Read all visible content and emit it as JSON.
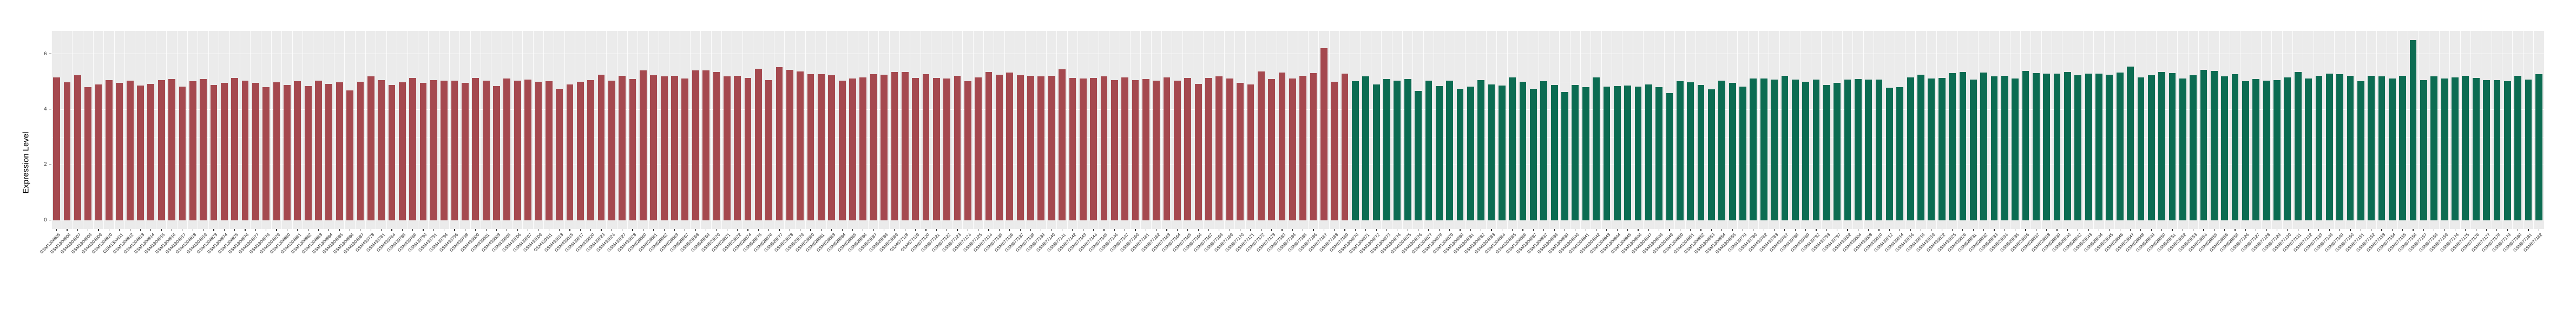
{
  "chart_data": {
    "type": "bar",
    "title": "",
    "xlabel": "",
    "ylabel": "Expression Level",
    "y_ticks": [
      0,
      2,
      4,
      6
    ],
    "ylim": [
      -0.35,
      6.85
    ],
    "grid": "on",
    "legend": "none",
    "panel_bg": "#EBEBEB",
    "grid_color": "#FFFFFF",
    "axis_text_color": "#333333",
    "groups": [
      {
        "name": "group-red",
        "color": "#A5494F",
        "samples": [
          "GSM1304905",
          "GSM1304906",
          "GSM1304907",
          "GSM1304908",
          "GSM1304909",
          "GSM1304910",
          "GSM1304911",
          "GSM1304912",
          "GSM1304913",
          "GSM1304914",
          "GSM1304915",
          "GSM1304916",
          "GSM1304917",
          "GSM1304918",
          "GSM1304919",
          "GSM1304973",
          "GSM1304974",
          "GSM1304975",
          "GSM1304976",
          "GSM1304977",
          "GSM1304978",
          "GSM1304979",
          "GSM1304980",
          "GSM1304981",
          "GSM1304982",
          "GSM1304983",
          "GSM1304984",
          "GSM1304985",
          "GSM1304986",
          "GSM1304987",
          "GSM439778",
          "GSM439781",
          "GSM439784",
          "GSM439785",
          "GSM439786",
          "GSM439790",
          "GSM439791",
          "GSM439794",
          "GSM439796",
          "GSM439798",
          "GSM439800",
          "GSM439801",
          "GSM439803",
          "GSM439805",
          "GSM439806",
          "GSM439807",
          "GSM439809",
          "GSM439811",
          "GSM439813",
          "GSM439815",
          "GSM439817",
          "GSM439820",
          "GSM439823",
          "GSM439824",
          "GSM439827",
          "GSM439828",
          "GSM528860",
          "GSM528861",
          "GSM528862",
          "GSM528863",
          "GSM528867",
          "GSM528868",
          "GSM528869",
          "GSM528870",
          "GSM528871",
          "GSM528872",
          "GSM528874",
          "GSM528875",
          "GSM528876",
          "GSM528877",
          "GSM528878",
          "GSM528879",
          "GSM528880",
          "GSM528881",
          "GSM528883",
          "GSM528884",
          "GSM528885",
          "GSM528886",
          "GSM528887",
          "GSM528888",
          "GSM528889",
          "GSM677118",
          "GSM677119",
          "GSM677120",
          "GSM677121",
          "GSM677122",
          "GSM677123",
          "GSM677124",
          "GSM677125",
          "GSM677134",
          "GSM677135",
          "GSM677136",
          "GSM677137",
          "GSM677138",
          "GSM677139",
          "GSM677140",
          "GSM677141",
          "GSM677142",
          "GSM677143",
          "GSM677144",
          "GSM677145",
          "GSM677146",
          "GSM677147",
          "GSM677160",
          "GSM677161",
          "GSM677162",
          "GSM677163",
          "GSM677164",
          "GSM677165",
          "GSM677166",
          "GSM677167",
          "GSM677168",
          "GSM677169",
          "GSM677170",
          "GSM677171",
          "GSM677172",
          "GSM677173",
          "GSM677183",
          "GSM677184",
          "GSM677185",
          "GSM677186",
          "GSM677187",
          "GSM677188",
          "GSM677189"
        ],
        "values": [
          5.16,
          4.98,
          5.22,
          4.8,
          4.9,
          5.06,
          4.96,
          5.03,
          4.86,
          4.92,
          5.05,
          5.09,
          4.82,
          5.01,
          5.09,
          4.87,
          4.95,
          5.13,
          5.03,
          4.96,
          4.79,
          4.98,
          4.88,
          5.01,
          4.83,
          5.03,
          4.92,
          4.98,
          4.69,
          5.0,
          5.18,
          5.06,
          4.87,
          4.97,
          5.13,
          4.95,
          5.06,
          5.03,
          5.04,
          4.95,
          5.13,
          5.03,
          4.84,
          5.11,
          5.04,
          5.08,
          4.99,
          5.02,
          4.74,
          4.89,
          4.99,
          5.06,
          5.25,
          5.03,
          5.21,
          5.1,
          5.4,
          5.22,
          5.18,
          5.21,
          5.11,
          5.41,
          5.4,
          5.34,
          5.18,
          5.21,
          5.14,
          5.46,
          5.05,
          5.52,
          5.42,
          5.36,
          5.26,
          5.26,
          5.22,
          5.03,
          5.11,
          5.16,
          5.26,
          5.24,
          5.35,
          5.34,
          5.13,
          5.26,
          5.14,
          5.12,
          5.21,
          5.01,
          5.16,
          5.35,
          5.25,
          5.32,
          5.22,
          5.21,
          5.19,
          5.21,
          5.45,
          5.14,
          5.12,
          5.14,
          5.19,
          5.06,
          5.16,
          5.06,
          5.09,
          5.04,
          5.16,
          5.03,
          5.14,
          4.92,
          5.14,
          5.19,
          5.12,
          4.95,
          4.9,
          5.36,
          5.1,
          5.32,
          5.11,
          5.2,
          5.31,
          6.2,
          4.99,
          5.29
        ]
      },
      {
        "name": "group-green",
        "color": "#0C6C52",
        "samples": [
          "GSM1304870",
          "GSM1304871",
          "GSM1304872",
          "GSM1304873",
          "GSM1304874",
          "GSM1304875",
          "GSM1304876",
          "GSM1304877",
          "GSM1304878",
          "GSM1304879",
          "GSM1304880",
          "GSM1304881",
          "GSM1304882",
          "GSM1304883",
          "GSM1304884",
          "GSM1304885",
          "GSM1304886",
          "GSM1304887",
          "GSM1304937",
          "GSM1304938",
          "GSM1304939",
          "GSM1304940",
          "GSM1304941",
          "GSM1304942",
          "GSM1304943",
          "GSM1304944",
          "GSM1304945",
          "GSM1304946",
          "GSM1304947",
          "GSM1304948",
          "GSM1304949",
          "GSM1304950",
          "GSM1304951",
          "GSM1304952",
          "GSM1304953",
          "GSM1304954",
          "GSM1304955",
          "GSM439779",
          "GSM439780",
          "GSM439782",
          "GSM439783",
          "GSM439787",
          "GSM439788",
          "GSM439789",
          "GSM439792",
          "GSM439793",
          "GSM439797",
          "GSM439802",
          "GSM439804",
          "GSM439808",
          "GSM439810",
          "GSM439812",
          "GSM439814",
          "GSM439816",
          "GSM439818",
          "GSM439819",
          "GSM439822",
          "GSM439825",
          "GSM439826",
          "GSM528831",
          "GSM528832",
          "GSM528833",
          "GSM528834",
          "GSM528835",
          "GSM528836",
          "GSM528837",
          "GSM528838",
          "GSM528839",
          "GSM528840",
          "GSM528842",
          "GSM528843",
          "GSM528844",
          "GSM528845",
          "GSM528846",
          "GSM528847",
          "GSM528848",
          "GSM528849",
          "GSM528850",
          "GSM528851",
          "GSM528852",
          "GSM528853",
          "GSM528854",
          "GSM528855",
          "GSM528856",
          "GSM528858",
          "GSM677126",
          "GSM677127",
          "GSM677128",
          "GSM677129",
          "GSM677130",
          "GSM677131",
          "GSM677132",
          "GSM677133",
          "GSM677148",
          "GSM677149",
          "GSM677150",
          "GSM677151",
          "GSM677152",
          "GSM677153",
          "GSM677154",
          "GSM677155",
          "GSM677156",
          "GSM677157",
          "GSM677158",
          "GSM677159",
          "GSM677174",
          "GSM677175",
          "GSM677176",
          "GSM677177",
          "GSM677178",
          "GSM677179",
          "GSM677180",
          "GSM677181",
          "GSM677182"
        ],
        "values": [
          5.01,
          5.19,
          4.9,
          5.09,
          5.03,
          5.09,
          4.67,
          5.03,
          4.83,
          5.04,
          4.74,
          4.82,
          5.06,
          4.9,
          4.85,
          5.16,
          5.0,
          4.75,
          5.01,
          4.87,
          4.62,
          4.87,
          4.79,
          5.16,
          4.82,
          4.83,
          4.85,
          4.82,
          4.9,
          4.8,
          4.59,
          5.01,
          4.98,
          4.88,
          4.72,
          5.03,
          4.96,
          4.82,
          5.12,
          5.11,
          5.08,
          5.2,
          5.08,
          5.0,
          5.08,
          4.88,
          4.96,
          5.08,
          5.1,
          5.08,
          5.07,
          4.77,
          4.8,
          5.16,
          5.25,
          5.11,
          5.13,
          5.31,
          5.35,
          5.08,
          5.32,
          5.18,
          5.21,
          5.12,
          5.38,
          5.31,
          5.29,
          5.29,
          5.35,
          5.22,
          5.29,
          5.29,
          5.24,
          5.33,
          5.55,
          5.16,
          5.22,
          5.34,
          5.31,
          5.12,
          5.22,
          5.42,
          5.38,
          5.18,
          5.26,
          5.01,
          5.09,
          5.03,
          5.06,
          5.16,
          5.35,
          5.11,
          5.21,
          5.29,
          5.27,
          5.21,
          5.01,
          5.21,
          5.18,
          5.11,
          5.21,
          6.49,
          5.05,
          5.19,
          5.11,
          5.15,
          5.21,
          5.13,
          5.05,
          5.05,
          5.01,
          5.2,
          5.08,
          5.27
        ]
      }
    ]
  },
  "layout_labels": {
    "y_axis_title": "Expression Level"
  }
}
